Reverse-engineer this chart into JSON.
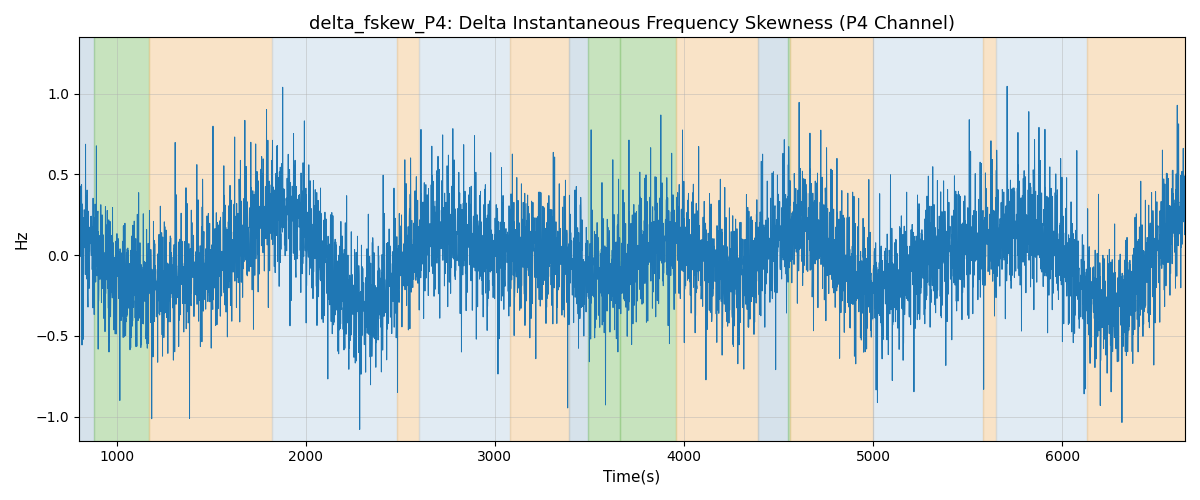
{
  "title": "delta_fskew_P4: Delta Instantaneous Frequency Skewness (P4 Channel)",
  "xlabel": "Time(s)",
  "ylabel": "Hz",
  "xlim": [
    800,
    6650
  ],
  "ylim": [
    -1.15,
    1.35
  ],
  "line_color": "#1f77b4",
  "line_width": 0.7,
  "grid_color": "#b0b0b0",
  "grid_alpha": 0.6,
  "background_color": "#ffffff",
  "bg_bands": [
    {
      "xmin": 800,
      "xmax": 880,
      "color": "#aec6d8",
      "alpha": 0.5
    },
    {
      "xmin": 880,
      "xmax": 1170,
      "color": "#90c97e",
      "alpha": 0.5
    },
    {
      "xmin": 1170,
      "xmax": 1820,
      "color": "#f5c990",
      "alpha": 0.5
    },
    {
      "xmin": 1820,
      "xmax": 2480,
      "color": "#c5d8e8",
      "alpha": 0.5
    },
    {
      "xmin": 2480,
      "xmax": 2600,
      "color": "#f5c990",
      "alpha": 0.5
    },
    {
      "xmin": 2600,
      "xmax": 3080,
      "color": "#c5d8e8",
      "alpha": 0.5
    },
    {
      "xmin": 3080,
      "xmax": 3390,
      "color": "#f5c990",
      "alpha": 0.5
    },
    {
      "xmin": 3390,
      "xmax": 3490,
      "color": "#aec6d8",
      "alpha": 0.5
    },
    {
      "xmin": 3490,
      "xmax": 3660,
      "color": "#90c97e",
      "alpha": 0.5
    },
    {
      "xmin": 3660,
      "xmax": 3960,
      "color": "#90c97e",
      "alpha": 0.5
    },
    {
      "xmin": 3960,
      "xmax": 4390,
      "color": "#f5c990",
      "alpha": 0.5
    },
    {
      "xmin": 4390,
      "xmax": 4550,
      "color": "#aec6d8",
      "alpha": 0.5
    },
    {
      "xmin": 4550,
      "xmax": 4560,
      "color": "#90c97e",
      "alpha": 0.5
    },
    {
      "xmin": 4560,
      "xmax": 5000,
      "color": "#f5c990",
      "alpha": 0.5
    },
    {
      "xmin": 5000,
      "xmax": 5580,
      "color": "#c5d8e8",
      "alpha": 0.5
    },
    {
      "xmin": 5580,
      "xmax": 5650,
      "color": "#f5c990",
      "alpha": 0.5
    },
    {
      "xmin": 5650,
      "xmax": 6130,
      "color": "#c5d8e8",
      "alpha": 0.5
    },
    {
      "xmin": 6130,
      "xmax": 6650,
      "color": "#f5c990",
      "alpha": 0.5
    }
  ],
  "yticks": [
    -1.0,
    -0.5,
    0.0,
    0.5,
    1.0
  ],
  "xticks": [
    1000,
    2000,
    3000,
    4000,
    5000,
    6000
  ],
  "seed": 42,
  "n_points": 5000,
  "title_fontsize": 13
}
